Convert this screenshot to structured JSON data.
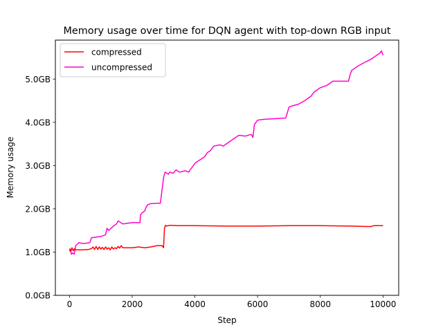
{
  "chart_data": {
    "type": "line",
    "title": "Memory usage over time for DQN agent with top-down RGB input",
    "xlabel": "Step",
    "ylabel": "Memory usage",
    "xlim": [
      -450,
      10500
    ],
    "ylim": [
      0,
      5.9
    ],
    "x_ticks": [
      0,
      2000,
      4000,
      6000,
      8000,
      10000
    ],
    "x_tick_labels": [
      "0",
      "2000",
      "4000",
      "6000",
      "8000",
      "10000"
    ],
    "y_ticks": [
      0,
      1,
      2,
      3,
      4,
      5
    ],
    "y_tick_labels": [
      "0.0GB",
      "1.0GB",
      "2.0GB",
      "3.0GB",
      "4.0GB",
      "5.0GB"
    ],
    "grid": false,
    "legend_position": "upper-left",
    "series": [
      {
        "name": "compressed",
        "color": "#ff0000",
        "x": [
          0,
          40,
          80,
          120,
          160,
          200,
          400,
          600,
          700,
          750,
          800,
          850,
          900,
          950,
          1000,
          1050,
          1100,
          1150,
          1200,
          1250,
          1300,
          1350,
          1400,
          1450,
          1500,
          1550,
          1600,
          1650,
          1700,
          1800,
          2000,
          2200,
          2400,
          2600,
          2800,
          2950,
          3000,
          3030,
          3060,
          3100,
          3200,
          3500,
          4000,
          5000,
          6000,
          7000,
          8000,
          9000,
          9600,
          9700,
          10000
        ],
        "values": [
          1.08,
          1.01,
          1.1,
          1.03,
          1.08,
          1.05,
          1.05,
          1.06,
          1.08,
          1.12,
          1.06,
          1.13,
          1.06,
          1.12,
          1.07,
          1.11,
          1.06,
          1.12,
          1.07,
          1.1,
          1.05,
          1.12,
          1.07,
          1.1,
          1.08,
          1.13,
          1.09,
          1.15,
          1.1,
          1.1,
          1.1,
          1.12,
          1.1,
          1.12,
          1.15,
          1.15,
          1.1,
          1.55,
          1.62,
          1.6,
          1.62,
          1.61,
          1.61,
          1.6,
          1.6,
          1.61,
          1.61,
          1.6,
          1.59,
          1.61,
          1.61
        ]
      },
      {
        "name": "uncompressed",
        "color": "#ff00cc",
        "x": [
          0,
          30,
          60,
          100,
          150,
          200,
          250,
          300,
          400,
          500,
          650,
          700,
          1000,
          1150,
          1200,
          1250,
          1400,
          1500,
          1550,
          1700,
          2000,
          2250,
          2260,
          2300,
          2400,
          2450,
          2500,
          2600,
          2900,
          3000,
          3050,
          3150,
          3200,
          3300,
          3400,
          3500,
          3700,
          3800,
          3900,
          4000,
          4050,
          4200,
          4300,
          4400,
          4500,
          4600,
          4800,
          4900,
          5000,
          5100,
          5200,
          5300,
          5400,
          5600,
          5800,
          5850,
          5900,
          6000,
          6200,
          6500,
          6900,
          7000,
          7100,
          7300,
          7500,
          7600,
          7700,
          7800,
          8000,
          8200,
          8400,
          8600,
          8900,
          8950,
          9000,
          9200,
          9400,
          9600,
          9800,
          9900,
          9950,
          10000
        ],
        "values": [
          1.02,
          1.07,
          0.95,
          0.98,
          0.95,
          1.15,
          1.18,
          1.22,
          1.2,
          1.2,
          1.22,
          1.33,
          1.36,
          1.4,
          1.55,
          1.5,
          1.6,
          1.65,
          1.72,
          1.65,
          1.68,
          1.68,
          1.85,
          1.9,
          1.95,
          2.05,
          2.1,
          2.12,
          2.13,
          2.72,
          2.85,
          2.8,
          2.85,
          2.82,
          2.9,
          2.85,
          2.88,
          2.85,
          2.95,
          3.05,
          3.08,
          3.15,
          3.2,
          3.3,
          3.35,
          3.45,
          3.48,
          3.45,
          3.5,
          3.55,
          3.6,
          3.65,
          3.7,
          3.68,
          3.72,
          3.65,
          3.95,
          4.05,
          4.07,
          4.08,
          4.1,
          4.35,
          4.38,
          4.42,
          4.5,
          4.55,
          4.6,
          4.7,
          4.8,
          4.85,
          4.95,
          4.95,
          4.95,
          5.1,
          5.2,
          5.3,
          5.38,
          5.45,
          5.55,
          5.6,
          5.65,
          5.55
        ]
      }
    ]
  }
}
